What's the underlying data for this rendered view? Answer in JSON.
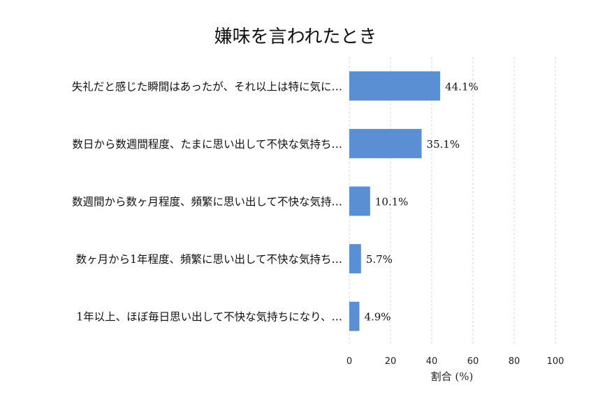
{
  "chart_data": {
    "type": "bar",
    "orientation": "horizontal",
    "title": "嫌味を言われたとき",
    "xlabel": "割合 (%)",
    "ylabel": "",
    "xlim": [
      0,
      100
    ],
    "x_ticks": [
      "0",
      "20",
      "40",
      "60",
      "80",
      "100"
    ],
    "grid": "vertical-dashed",
    "bar_color": "#5b8fd3",
    "categories": [
      "失礼だと感じた瞬間はあったが、それ以上は特に気に…",
      "数日から数週間程度、たまに思い出して不快な気持ち…",
      "数週間から数ヶ月程度、頻繁に思い出して不快な気持…",
      "数ヶ月から1年程度、頻繁に思い出して不快な気持ち…",
      "1年以上、ほぼ毎日思い出して不快な気持ちになり、…"
    ],
    "values": [
      44.1,
      35.1,
      10.1,
      5.7,
      4.9
    ],
    "value_labels": [
      "44.1%",
      "35.1%",
      "10.1%",
      "5.7%",
      "4.9%"
    ]
  }
}
